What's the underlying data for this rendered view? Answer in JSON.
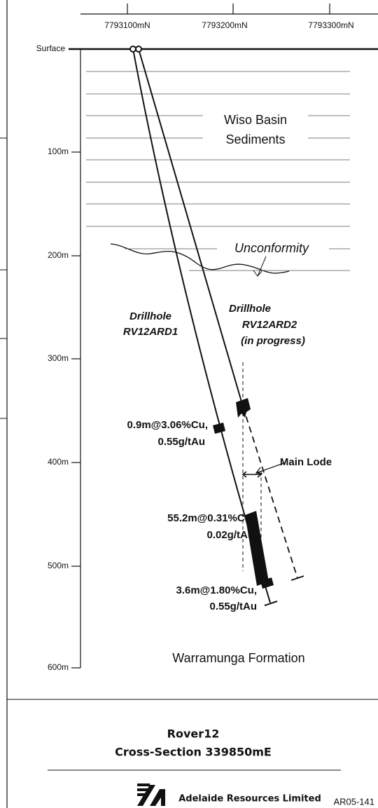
{
  "northing_axis": {
    "labels": [
      "7793100mN",
      "7793200mN",
      "7793300mN"
    ]
  },
  "surface_label": "Surface",
  "depth_axis": {
    "labels": [
      "100m",
      "200m",
      "300m",
      "400m",
      "500m",
      "600m"
    ]
  },
  "units": {
    "sediments": [
      "Wiso Basin",
      "Sediments"
    ],
    "unconformity": "Unconformity",
    "formation": "Warramunga Formation"
  },
  "drillholes": [
    {
      "lines": [
        "Drillhole",
        "RV12ARD1"
      ]
    },
    {
      "lines": [
        "Drillhole",
        "RV12ARD2",
        "(in progress)"
      ]
    }
  ],
  "intercepts": [
    {
      "lines": [
        "0.9m@3.06%Cu,",
        "0.55g/tAu"
      ]
    },
    {
      "lines": [
        "55.2m@0.31%Cu,",
        "0.02g/tAu"
      ]
    },
    {
      "lines": [
        "3.6m@1.80%Cu,",
        "0.55g/tAu"
      ]
    }
  ],
  "main_lode": "Main Lode",
  "footer": {
    "title": "Rover12",
    "subtitle": "Cross-Section 339850mE",
    "company": "Adelaide Resources Limited",
    "code": "AR05-141"
  }
}
